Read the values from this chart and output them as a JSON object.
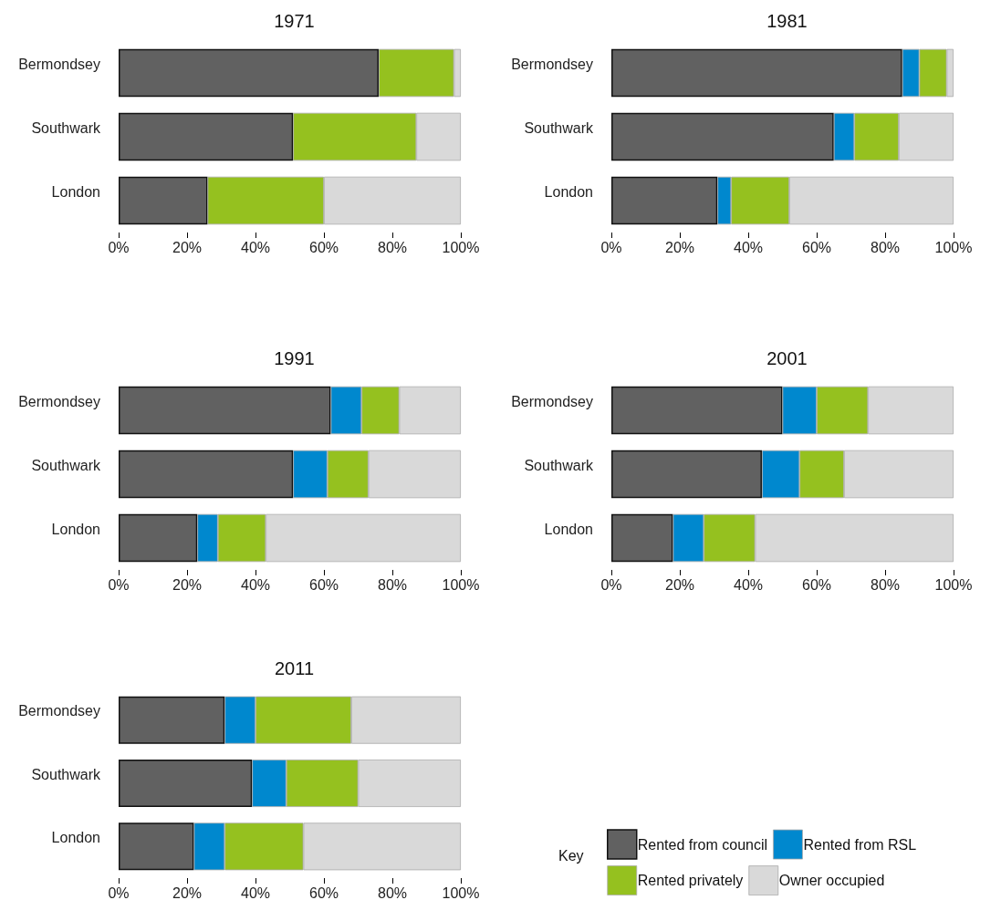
{
  "chart_data": [
    {
      "type": "bar",
      "title": "1971",
      "orientation": "horizontal",
      "stacked": true,
      "categories": [
        "Bermondsey",
        "Southwark",
        "London"
      ],
      "xlim": [
        0,
        100
      ],
      "xticks": [
        {
          "value": 0,
          "label": "0%"
        },
        {
          "value": 20,
          "label": "20%"
        },
        {
          "value": 40,
          "label": "40%"
        },
        {
          "value": 60,
          "label": "60%"
        },
        {
          "value": 80,
          "label": "80%"
        },
        {
          "value": 100,
          "label": "100%"
        }
      ],
      "grid": false,
      "series": [
        {
          "color": "#616161",
          "values": [
            76,
            51,
            26
          ]
        },
        {
          "color": "#0088ce",
          "values": [
            null,
            null,
            null
          ]
        },
        {
          "color": "#95c11f",
          "values": [
            22,
            36,
            34
          ]
        },
        {
          "color": "#d9d9d9",
          "values": [
            2,
            13,
            40
          ]
        }
      ]
    },
    {
      "type": "bar",
      "title": "1981",
      "orientation": "horizontal",
      "stacked": true,
      "categories": [
        "Bermondsey",
        "Southwark",
        "London"
      ],
      "xlim": [
        0,
        100
      ],
      "xticks": [
        {
          "value": 0,
          "label": "0%"
        },
        {
          "value": 20,
          "label": "20%"
        },
        {
          "value": 40,
          "label": "40%"
        },
        {
          "value": 60,
          "label": "60%"
        },
        {
          "value": 80,
          "label": "80%"
        },
        {
          "value": 100,
          "label": "100%"
        }
      ],
      "grid": false,
      "series": [
        {
          "color": "#616161",
          "values": [
            85,
            65,
            31
          ]
        },
        {
          "color": "#0088ce",
          "values": [
            5,
            6,
            4
          ]
        },
        {
          "color": "#95c11f",
          "values": [
            8,
            13,
            17
          ]
        },
        {
          "color": "#d9d9d9",
          "values": [
            2,
            16,
            48
          ]
        }
      ]
    },
    {
      "type": "bar",
      "title": "1991",
      "orientation": "horizontal",
      "stacked": true,
      "categories": [
        "Bermondsey",
        "Southwark",
        "London"
      ],
      "xlim": [
        0,
        100
      ],
      "xticks": [
        {
          "value": 0,
          "label": "0%"
        },
        {
          "value": 20,
          "label": "20%"
        },
        {
          "value": 40,
          "label": "40%"
        },
        {
          "value": 60,
          "label": "60%"
        },
        {
          "value": 80,
          "label": "80%"
        },
        {
          "value": 100,
          "label": "100%"
        }
      ],
      "grid": false,
      "series": [
        {
          "color": "#616161",
          "values": [
            62,
            51,
            23
          ]
        },
        {
          "color": "#0088ce",
          "values": [
            9,
            10,
            6
          ]
        },
        {
          "color": "#95c11f",
          "values": [
            11,
            12,
            14
          ]
        },
        {
          "color": "#d9d9d9",
          "values": [
            18,
            27,
            57
          ]
        }
      ]
    },
    {
      "type": "bar",
      "title": "2001",
      "orientation": "horizontal",
      "stacked": true,
      "categories": [
        "Bermondsey",
        "Southwark",
        "London"
      ],
      "xlim": [
        0,
        100
      ],
      "xticks": [
        {
          "value": 0,
          "label": "0%"
        },
        {
          "value": 20,
          "label": "20%"
        },
        {
          "value": 40,
          "label": "40%"
        },
        {
          "value": 60,
          "label": "60%"
        },
        {
          "value": 80,
          "label": "80%"
        },
        {
          "value": 100,
          "label": "100%"
        }
      ],
      "grid": false,
      "series": [
        {
          "color": "#616161",
          "values": [
            50,
            44,
            18
          ]
        },
        {
          "color": "#0088ce",
          "values": [
            10,
            11,
            9
          ]
        },
        {
          "color": "#95c11f",
          "values": [
            15,
            13,
            15
          ]
        },
        {
          "color": "#d9d9d9",
          "values": [
            25,
            32,
            58
          ]
        }
      ]
    },
    {
      "type": "bar",
      "title": "2011",
      "orientation": "horizontal",
      "stacked": true,
      "categories": [
        "Bermondsey",
        "Southwark",
        "London"
      ],
      "xlim": [
        0,
        100
      ],
      "xticks": [
        {
          "value": 0,
          "label": "0%"
        },
        {
          "value": 20,
          "label": "20%"
        },
        {
          "value": 40,
          "label": "40%"
        },
        {
          "value": 60,
          "label": "60%"
        },
        {
          "value": 80,
          "label": "80%"
        },
        {
          "value": 100,
          "label": "100%"
        }
      ],
      "grid": false,
      "legend": "bottom right",
      "legend_title": "Key",
      "series": [
        {
          "name": "Rented from council",
          "color": "#616161",
          "values": [
            31,
            39,
            22
          ]
        },
        {
          "name": "Rented from RSL",
          "color": "#0088ce",
          "values": [
            9,
            10,
            9
          ]
        },
        {
          "name": "Rented privately",
          "color": "#95c11f",
          "values": [
            28,
            21,
            23
          ]
        },
        {
          "name": "Owner occupied",
          "color": "#d9d9d9",
          "values": [
            32,
            30,
            46
          ]
        }
      ]
    }
  ]
}
